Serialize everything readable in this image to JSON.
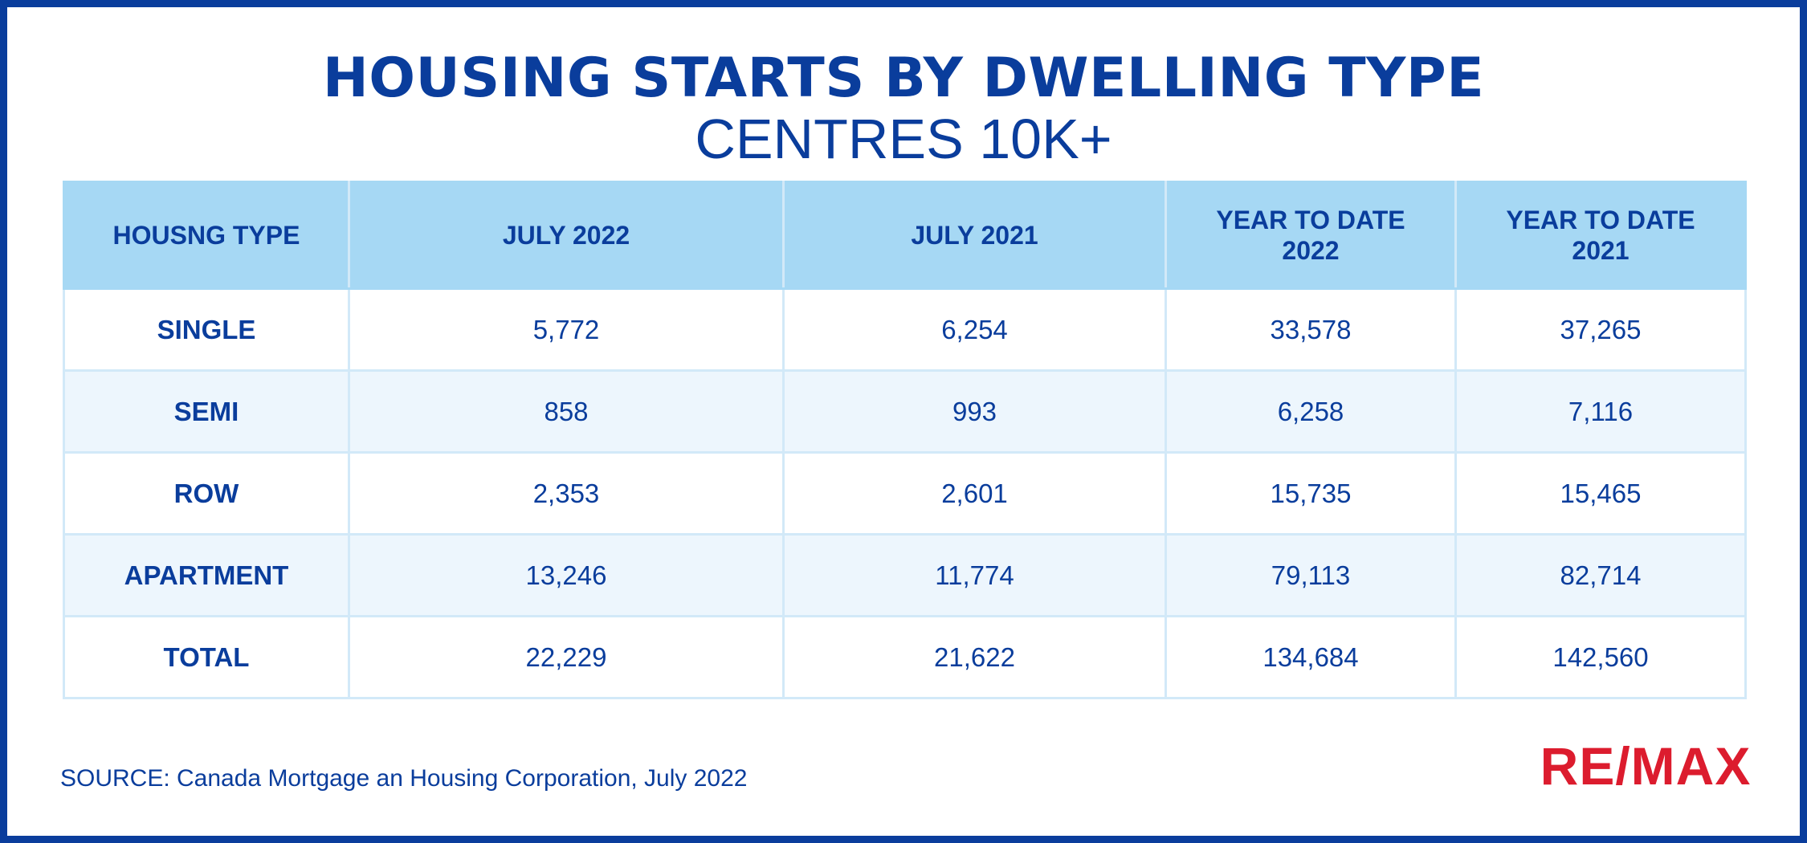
{
  "title": "HOUSING STARTS BY DWELLING TYPE",
  "subtitle": "CENTRES 10K+",
  "source": "SOURCE: Canada Mortgage an Housing Corporation, July 2022",
  "logo": {
    "text": "RE/MAX",
    "color": "#dc1c2e"
  },
  "colors": {
    "brand_blue": "#0a3d9c",
    "header_fill": "#a6d8f4",
    "stripe_fill": "#edf6fd"
  },
  "chart_data": {
    "type": "table",
    "columns": [
      "HOUSNG TYPE",
      "JULY 2022",
      "JULY 2021",
      "YEAR TO DATE 2022",
      "YEAR TO DATE 2021"
    ],
    "rows": [
      [
        "SINGLE",
        "5,772",
        "6,254",
        "33,578",
        "37,265"
      ],
      [
        "SEMI",
        "858",
        "993",
        "6,258",
        "7,116"
      ],
      [
        "ROW",
        "2,353",
        "2,601",
        "15,735",
        "15,465"
      ],
      [
        "APARTMENT",
        "13,246",
        "11,774",
        "79,113",
        "82,714"
      ],
      [
        "TOTAL",
        "22,229",
        "21,622",
        "134,684",
        "142,560"
      ]
    ]
  }
}
